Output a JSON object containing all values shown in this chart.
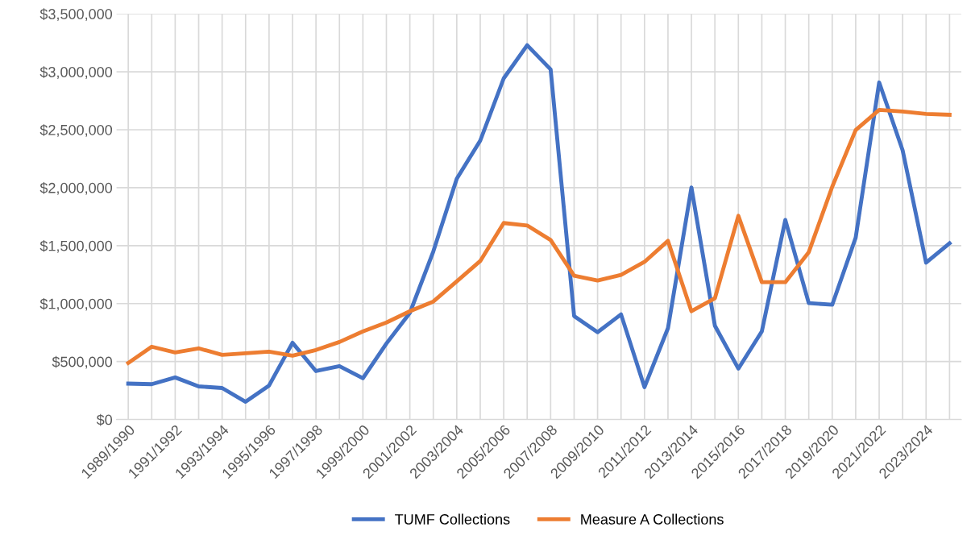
{
  "chart_data": {
    "type": "line",
    "categories": [
      "1989/1990",
      null,
      "1991/1992",
      null,
      "1993/1994",
      null,
      "1995/1996",
      null,
      "1997/1998",
      null,
      "1999/2000",
      null,
      "2001/2002",
      null,
      "2003/2004",
      null,
      "2005/2006",
      null,
      "2007/2008",
      null,
      "2009/2010",
      null,
      "2011/2012",
      null,
      "2013/2014",
      null,
      "2015/2016",
      null,
      "2017/2018",
      null,
      "2019/2020",
      null,
      "2021/2022",
      null,
      "2023/2024",
      null
    ],
    "series": [
      {
        "name": "TUMF Collections",
        "color": "#4472c4",
        "values": [
          310000,
          305000,
          363000,
          286000,
          272000,
          153000,
          293000,
          662000,
          418000,
          460000,
          356000,
          655000,
          920000,
          1450000,
          2078000,
          2406000,
          2943000,
          3229000,
          3020000,
          893000,
          753000,
          907000,
          279000,
          788000,
          2001000,
          809000,
          439000,
          760000,
          1722000,
          1004000,
          990000,
          1569000,
          2908000,
          2322000,
          1353000,
          1520000
        ]
      },
      {
        "name": "Measure A Collections",
        "color": "#ed7d31",
        "values": [
          488000,
          628000,
          579000,
          614000,
          558000,
          572000,
          586000,
          551000,
          600000,
          669000,
          760000,
          837000,
          934000,
          1018000,
          1192000,
          1367000,
          1695000,
          1674000,
          1548000,
          1241000,
          1199000,
          1248000,
          1360000,
          1541000,
          934000,
          1046000,
          1757000,
          1185000,
          1185000,
          1444000,
          2008000,
          2497000,
          2671000,
          2657000,
          2636000,
          2629000
        ]
      }
    ],
    "ylim": [
      0,
      3500000
    ],
    "yticks": [
      {
        "value": 0,
        "label": "$0"
      },
      {
        "value": 500000,
        "label": "$500,000"
      },
      {
        "value": 1000000,
        "label": "$1,000,000"
      },
      {
        "value": 1500000,
        "label": "$1,500,000"
      },
      {
        "value": 2000000,
        "label": "$2,000,000"
      },
      {
        "value": 2500000,
        "label": "$2,500,000"
      },
      {
        "value": 3000000,
        "label": "$3,000,000"
      },
      {
        "value": 3500000,
        "label": "$3,500,000"
      }
    ],
    "grid": true,
    "legend": "bottom",
    "marker": "none",
    "line_style": "solid"
  }
}
